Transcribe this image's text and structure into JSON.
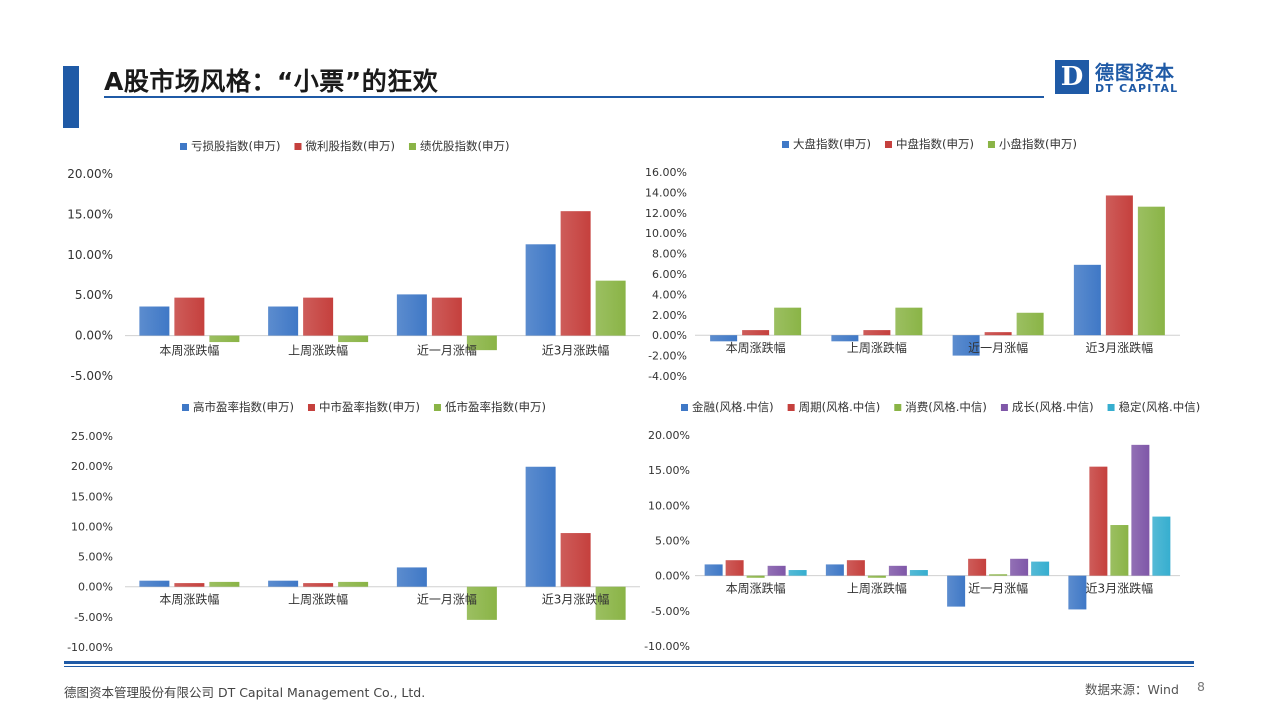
{
  "header": {
    "title": "A股市场风格：“小票”的狂欢",
    "logo_mark": "D",
    "logo_cn": "德图资本",
    "logo_en": "DT CAPITAL"
  },
  "footer": {
    "company": "德图资本管理股份有限公司  DT Capital Management  Co., Ltd.",
    "source": "数据来源：Wind",
    "page": "8"
  },
  "colors": {
    "blue": "#3f78c6",
    "red": "#c5403d",
    "green": "#8ab446",
    "purple": "#7f57a8",
    "cyan": "#36aecf",
    "brand": "#1f5aa6"
  },
  "chart_data": [
    {
      "type": "bar",
      "categories": [
        "本周涨跌幅",
        "上周涨跌幅",
        "近一月涨幅",
        "近3月涨跌幅"
      ],
      "series": [
        {
          "name": "亏损股指数(申万)",
          "color": "#3f78c6",
          "values": [
            3.6,
            3.6,
            5.1,
            11.3
          ]
        },
        {
          "name": "微利股指数(申万)",
          "color": "#c5403d",
          "values": [
            4.7,
            4.7,
            4.7,
            15.4
          ]
        },
        {
          "name": "绩优股指数(申万)",
          "color": "#8ab446",
          "values": [
            -0.8,
            -0.8,
            -1.8,
            6.8
          ]
        }
      ],
      "y_ticks": [
        "20.00%",
        "15.00%",
        "10.00%",
        "5.00%",
        "0.00%",
        "-5.00%"
      ],
      "ylim": [
        -5,
        20
      ],
      "legend": "top"
    },
    {
      "type": "bar",
      "categories": [
        "本周涨跌幅",
        "上周涨跌幅",
        "近一月涨幅",
        "近3月涨跌幅"
      ],
      "series": [
        {
          "name": "大盘指数(申万)",
          "color": "#3f78c6",
          "values": [
            -0.6,
            -0.6,
            -2.0,
            6.9
          ]
        },
        {
          "name": "中盘指数(申万)",
          "color": "#c5403d",
          "values": [
            0.5,
            0.5,
            0.3,
            13.7
          ]
        },
        {
          "name": "小盘指数(申万)",
          "color": "#8ab446",
          "values": [
            2.7,
            2.7,
            2.2,
            12.6
          ]
        }
      ],
      "y_ticks": [
        "16.00%",
        "14.00%",
        "12.00%",
        "10.00%",
        "8.00%",
        "6.00%",
        "4.00%",
        "2.00%",
        "0.00%",
        "-2.00%",
        "-4.00%"
      ],
      "ylim": [
        -4,
        16
      ],
      "legend": "top"
    },
    {
      "type": "bar",
      "categories": [
        "本周涨跌幅",
        "上周涨跌幅",
        "近一月涨幅",
        "近3月涨跌幅"
      ],
      "series": [
        {
          "name": "高市盈率指数(申万)",
          "color": "#3f78c6",
          "values": [
            1.0,
            1.0,
            3.2,
            19.9
          ]
        },
        {
          "name": "中市盈率指数(申万)",
          "color": "#c5403d",
          "values": [
            0.6,
            0.6,
            0.0,
            8.9
          ]
        },
        {
          "name": "低市盈率指数(申万)",
          "color": "#8ab446",
          "values": [
            0.8,
            0.8,
            -5.5,
            -5.5
          ]
        }
      ],
      "y_ticks": [
        "25.00%",
        "20.00%",
        "15.00%",
        "10.00%",
        "5.00%",
        "0.00%",
        "-5.00%",
        "-10.00%"
      ],
      "ylim": [
        -10,
        25
      ],
      "legend": "top"
    },
    {
      "type": "bar",
      "categories": [
        "本周涨跌幅",
        "上周涨跌幅",
        "近一月涨幅",
        "近3月涨跌幅"
      ],
      "series": [
        {
          "name": "金融(风格.中信)",
          "color": "#3f78c6",
          "values": [
            1.6,
            1.6,
            -4.4,
            -4.8
          ]
        },
        {
          "name": "周期(风格.中信)",
          "color": "#c5403d",
          "values": [
            2.2,
            2.2,
            2.4,
            15.5
          ]
        },
        {
          "name": "消费(风格.中信)",
          "color": "#8ab446",
          "values": [
            -0.3,
            -0.3,
            0.2,
            7.2
          ]
        },
        {
          "name": "成长(风格.中信)",
          "color": "#7f57a8",
          "values": [
            1.4,
            1.4,
            2.4,
            18.6
          ]
        },
        {
          "name": "稳定(风格.中信)",
          "color": "#36aecf",
          "values": [
            0.8,
            0.8,
            2.0,
            8.4
          ]
        }
      ],
      "y_ticks": [
        "20.00%",
        "15.00%",
        "10.00%",
        "5.00%",
        "0.00%",
        "-5.00%",
        "-10.00%"
      ],
      "ylim": [
        -10,
        20
      ],
      "legend": "top"
    }
  ]
}
